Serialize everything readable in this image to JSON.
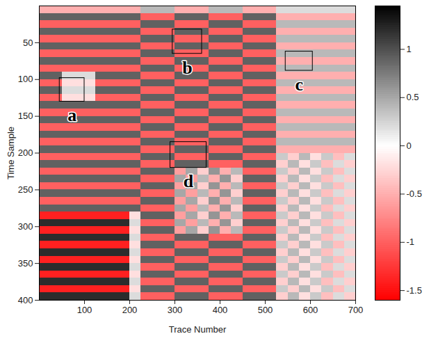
{
  "chart_data": {
    "type": "heatmap",
    "x_label": "Trace Number",
    "y_label": "Time Sample",
    "xlim": [
      0,
      700
    ],
    "xticks": [
      100,
      200,
      300,
      400,
      500,
      600,
      700
    ],
    "ylim": [
      0,
      400
    ],
    "yticks": [
      50,
      100,
      150,
      200,
      250,
      300,
      350,
      400
    ],
    "cells": {
      "x": [
        12.5,
        37.5,
        62.5,
        87.5,
        112.5,
        137.5,
        162.5,
        187.5,
        212.5,
        237.5,
        262.5,
        287.5,
        312.5,
        337.5,
        362.5,
        387.5,
        412.5,
        437.5,
        462.5,
        487.5,
        512.5,
        537.5,
        562.5,
        587.5,
        612.5,
        637.5,
        662.5,
        687.5
      ],
      "y": [
        5,
        15,
        25,
        35,
        45,
        55,
        65,
        75,
        85,
        95,
        105,
        115,
        125,
        135,
        145,
        155,
        165,
        175,
        185,
        195,
        205,
        215,
        225,
        235,
        245,
        255,
        265,
        275,
        285,
        295,
        305,
        315,
        325,
        335,
        345,
        355,
        365,
        375,
        385,
        395
      ],
      "values": [
        [
          -0.5,
          -0.5,
          -0.5,
          -0.5,
          -0.5,
          -0.5,
          -0.5,
          -0.5,
          -0.5,
          0.4,
          0.4,
          0.4,
          -0.5,
          -0.5,
          -0.5,
          0.4,
          0.4,
          0.4,
          -0.5,
          -0.5,
          -0.5,
          0.2,
          0.2,
          0.2,
          0.2,
          0.2,
          0.2,
          0.2
        ],
        [
          0.9,
          0.9,
          0.9,
          0.9,
          0.9,
          0.9,
          0.9,
          0.9,
          0.9,
          -1,
          -1,
          -1,
          0.9,
          0.9,
          0.9,
          -1,
          -1,
          -1,
          0.9,
          0.9,
          0.9,
          -0.5,
          -0.5,
          -0.5,
          -0.5,
          -0.5,
          -0.5,
          -0.5
        ],
        [
          -1,
          -1,
          -1,
          -1,
          -1,
          -1,
          -1,
          -1,
          -1,
          0.9,
          0.9,
          0.9,
          -1,
          -1,
          -1,
          0.9,
          0.9,
          0.9,
          -1,
          -1,
          -1,
          0.4,
          0.4,
          0.4,
          0.4,
          0.4,
          0.4,
          0.4
        ],
        [
          0.9,
          0.9,
          0.9,
          0.9,
          0.9,
          0.9,
          0.9,
          0.9,
          0.9,
          -1,
          -1,
          -1,
          0.9,
          0.9,
          0.9,
          -1,
          -1,
          -1,
          0.9,
          0.9,
          0.9,
          -0.5,
          -0.5,
          -0.5,
          -0.5,
          -0.5,
          -0.5,
          -0.5
        ],
        [
          -1,
          -1,
          -1,
          -1,
          -1,
          -1,
          -1,
          -1,
          -1,
          0.9,
          0.9,
          0.9,
          -1,
          -1,
          -1,
          0.9,
          0.9,
          0.9,
          -1,
          -1,
          -1,
          0.4,
          0.4,
          0.4,
          0.4,
          0.4,
          0.4,
          0.4
        ],
        [
          0.9,
          0.9,
          0.9,
          0.9,
          0.9,
          0.9,
          0.9,
          0.9,
          0.9,
          -1,
          -1,
          -1,
          0.9,
          0.9,
          0.9,
          -1,
          -1,
          -1,
          0.9,
          0.9,
          0.9,
          -0.5,
          -0.5,
          -0.5,
          -0.5,
          -0.5,
          -0.5,
          -0.5
        ],
        [
          -1,
          -1,
          -1,
          -1,
          -1,
          -1,
          -1,
          -1,
          -1,
          0.9,
          0.9,
          0.9,
          -1,
          -1,
          -1,
          0.9,
          0.9,
          0.9,
          -1,
          -1,
          -1,
          0.4,
          0.4,
          0.4,
          0.4,
          0.4,
          0.4,
          0.4
        ],
        [
          0.9,
          0.9,
          0.9,
          0.9,
          0.9,
          0.9,
          0.9,
          0.9,
          0.9,
          -1,
          -1,
          -1,
          0.9,
          0.9,
          0.9,
          -1,
          -1,
          -1,
          0.9,
          0.9,
          0.9,
          -0.5,
          -0.5,
          -0.5,
          -0.5,
          -0.5,
          -0.5,
          -0.5
        ],
        [
          -1,
          -1,
          -1,
          -1,
          -1,
          -1,
          -1,
          -1,
          -1,
          0.9,
          0.9,
          0.9,
          -1,
          -1,
          -1,
          0.9,
          0.9,
          0.9,
          -1,
          -1,
          -1,
          0.4,
          0.4,
          0.4,
          0.4,
          0.4,
          0.4,
          0.4
        ],
        [
          0.9,
          0.9,
          0.2,
          0.2,
          0.2,
          0.9,
          0.9,
          0.9,
          0.9,
          -1,
          -1,
          -1,
          0.9,
          0.9,
          0.9,
          -1,
          -1,
          -1,
          0.9,
          0.9,
          0.9,
          -0.5,
          -0.5,
          -0.5,
          -0.5,
          -0.5,
          -0.5,
          -0.5
        ],
        [
          -1,
          -1,
          -0.2,
          -0.2,
          -0.2,
          -1,
          -1,
          -1,
          -1,
          0.9,
          0.9,
          0.9,
          -1,
          -1,
          -1,
          0.9,
          0.9,
          0.9,
          -1,
          -1,
          -1,
          0.4,
          0.4,
          0.4,
          0.4,
          0.4,
          0.4,
          0.4
        ],
        [
          0.9,
          0.9,
          0.2,
          0.2,
          0.2,
          0.9,
          0.9,
          0.9,
          0.9,
          -1,
          -1,
          -1,
          0.9,
          0.9,
          0.9,
          -1,
          -1,
          -1,
          0.9,
          0.9,
          0.9,
          -0.5,
          -0.5,
          -0.5,
          -0.5,
          -0.5,
          -0.5,
          -0.5
        ],
        [
          -1,
          -1,
          -0.2,
          -0.2,
          -0.2,
          -1,
          -1,
          -1,
          -1,
          0.9,
          0.9,
          0.9,
          -1,
          -1,
          -1,
          0.9,
          0.9,
          0.9,
          -1,
          -1,
          -1,
          0.4,
          0.4,
          0.4,
          0.4,
          0.4,
          0.4,
          0.4
        ],
        [
          0.9,
          0.9,
          0.9,
          0.9,
          0.9,
          0.9,
          0.9,
          0.9,
          0.9,
          -1,
          -1,
          -1,
          0.9,
          0.9,
          0.9,
          -1,
          -1,
          -1,
          0.9,
          0.9,
          0.9,
          -0.5,
          -0.5,
          -0.5,
          -0.5,
          -0.5,
          -0.5,
          -0.5
        ],
        [
          -1,
          -1,
          -1,
          -1,
          -1,
          -1,
          -1,
          -1,
          -1,
          0.9,
          0.9,
          0.9,
          -1,
          -1,
          -1,
          0.9,
          0.9,
          0.9,
          -1,
          -1,
          -1,
          0.4,
          0.4,
          0.4,
          0.4,
          0.4,
          0.4,
          0.4
        ],
        [
          0.9,
          0.9,
          0.9,
          0.9,
          0.9,
          0.9,
          0.9,
          0.9,
          0.9,
          -1,
          -1,
          -1,
          0.9,
          0.9,
          0.9,
          -1,
          -1,
          -1,
          0.9,
          0.9,
          0.9,
          -0.5,
          -0.5,
          -0.5,
          -0.5,
          -0.5,
          -0.5,
          -0.5
        ],
        [
          -1,
          -1,
          -1,
          -1,
          -1,
          -1,
          -1,
          -1,
          -1,
          0.9,
          0.9,
          0.9,
          -1,
          -1,
          -1,
          0.9,
          0.9,
          0.9,
          -1,
          -1,
          -1,
          0.4,
          0.4,
          0.4,
          0.4,
          0.4,
          0.4,
          0.4
        ],
        [
          0.9,
          0.9,
          0.9,
          0.9,
          0.9,
          0.9,
          0.9,
          0.9,
          0.9,
          -1,
          -1,
          -1,
          0.9,
          0.9,
          0.9,
          -1,
          -1,
          -1,
          0.9,
          0.9,
          0.9,
          -0.5,
          -0.5,
          -0.5,
          -0.5,
          -0.5,
          -0.5,
          -0.5
        ],
        [
          -1,
          -1,
          -1,
          -1,
          -1,
          -1,
          -1,
          -1,
          -1,
          0.9,
          0.9,
          0.9,
          -1,
          -1,
          -1,
          0.9,
          0.9,
          0.9,
          -1,
          -1,
          -1,
          0.4,
          0.4,
          0.4,
          0.4,
          0.4,
          0.4,
          0.4
        ],
        [
          0.9,
          0.9,
          0.9,
          0.9,
          0.9,
          0.9,
          0.9,
          0.9,
          0.9,
          -1,
          -1,
          -1,
          0.9,
          0.9,
          0.9,
          -1,
          -1,
          -1,
          0.9,
          0.9,
          0.9,
          -0.5,
          -0.5,
          -0.5,
          -0.5,
          -0.5,
          -0.5,
          -0.5
        ],
        [
          -1,
          -1,
          -1,
          -1,
          -1,
          -1,
          -1,
          -1,
          -1,
          0.9,
          0.9,
          0.9,
          -1,
          -1,
          -1,
          0.9,
          0.9,
          0.9,
          -1,
          -1,
          -1,
          0.3,
          -0.3,
          0.4,
          -0.2,
          0.3,
          -0.4,
          0.2
        ],
        [
          0.9,
          0.9,
          0.9,
          0.9,
          0.9,
          0.9,
          0.9,
          0.9,
          0.9,
          -1,
          -1,
          -1,
          0.9,
          0.9,
          0.9,
          -1,
          -1,
          -1,
          0.9,
          0.9,
          0.9,
          -0.3,
          0.4,
          -0.2,
          0.3,
          -0.4,
          0.2,
          -0.3
        ],
        [
          -1,
          -1,
          -1,
          -1,
          -1,
          -1,
          -1,
          -1,
          -1,
          0.9,
          0.9,
          0.9,
          -0.6,
          0.5,
          -0.3,
          0.6,
          -0.5,
          0.4,
          -1,
          -1,
          -1,
          0.3,
          -0.3,
          0.4,
          -0.2,
          0.3,
          -0.4,
          0.2
        ],
        [
          0.9,
          0.9,
          0.9,
          0.9,
          0.9,
          0.9,
          0.9,
          0.9,
          0.9,
          -1,
          -1,
          -1,
          0.5,
          -0.6,
          0.4,
          -0.5,
          0.6,
          -0.3,
          0.9,
          0.9,
          0.9,
          -0.3,
          0.4,
          -0.2,
          0.3,
          -0.4,
          0.2,
          -0.3
        ],
        [
          -1,
          -1,
          -1,
          -1,
          -1,
          -1,
          -1,
          -1,
          -1,
          0.9,
          0.9,
          0.9,
          -0.6,
          0.5,
          -0.3,
          0.6,
          -0.5,
          0.4,
          -1,
          -1,
          -1,
          0.3,
          -0.3,
          0.4,
          -0.2,
          0.3,
          -0.4,
          0.2
        ],
        [
          0.9,
          0.9,
          0.9,
          0.9,
          0.9,
          0.9,
          0.9,
          0.9,
          0.9,
          -1,
          -1,
          -1,
          0.5,
          -0.6,
          0.4,
          -0.5,
          0.6,
          -0.3,
          0.9,
          0.9,
          0.9,
          -0.3,
          0.4,
          -0.2,
          0.3,
          -0.4,
          0.2,
          -0.3
        ],
        [
          -1,
          -1,
          -1,
          -1,
          -1,
          -1,
          -1,
          -1,
          -1,
          0.9,
          0.9,
          0.9,
          -0.6,
          0.5,
          -0.3,
          0.6,
          -0.5,
          0.4,
          -1,
          -1,
          -1,
          0.3,
          -0.3,
          0.4,
          -0.2,
          0.3,
          -0.4,
          0.2
        ],
        [
          0.9,
          0.9,
          0.9,
          0.9,
          0.9,
          0.9,
          0.9,
          0.9,
          0.9,
          -1,
          -1,
          -1,
          0.5,
          -0.6,
          0.4,
          -0.5,
          0.6,
          -0.3,
          0.9,
          0.9,
          0.9,
          -0.3,
          0.4,
          -0.2,
          0.3,
          -0.4,
          0.2,
          -0.3
        ],
        [
          -1.4,
          -1.4,
          -1.4,
          -1.4,
          -1.4,
          -1.4,
          -1.4,
          -1.4,
          -0.2,
          0.9,
          0.9,
          0.9,
          -0.6,
          0.5,
          -0.3,
          0.6,
          -0.5,
          0.4,
          -1,
          -1,
          -1,
          0.3,
          -0.3,
          0.4,
          -0.2,
          0.3,
          -0.4,
          0.2
        ],
        [
          1.2,
          1.2,
          1.2,
          1.2,
          1.2,
          1.2,
          1.2,
          1.2,
          0.2,
          -1,
          -1,
          -1,
          0.5,
          -0.6,
          0.4,
          -0.5,
          0.6,
          -0.3,
          0.9,
          0.9,
          0.9,
          -0.3,
          0.4,
          -0.2,
          0.3,
          -0.4,
          0.2,
          -0.3
        ],
        [
          -1.4,
          -1.4,
          -1.4,
          -1.4,
          -1.4,
          -1.4,
          -1.4,
          -1.4,
          -0.2,
          0.9,
          0.9,
          0.9,
          -0.6,
          0.5,
          -0.3,
          0.6,
          -0.5,
          0.4,
          -1,
          -1,
          -1,
          0.3,
          -0.3,
          0.4,
          -0.2,
          0.3,
          -0.4,
          0.2
        ],
        [
          1.2,
          1.2,
          1.2,
          1.2,
          1.2,
          1.2,
          1.2,
          1.2,
          0.2,
          -1,
          -1,
          -1,
          0.9,
          0.9,
          0.9,
          -1,
          -1,
          -1,
          0.9,
          0.9,
          0.9,
          -0.3,
          0.4,
          -0.2,
          0.3,
          -0.4,
          0.2,
          -0.3
        ],
        [
          -1.4,
          -1.4,
          -1.4,
          -1.4,
          -1.4,
          -1.4,
          -1.4,
          -1.4,
          -0.2,
          0.9,
          0.9,
          0.9,
          -1,
          -1,
          -1,
          0.9,
          0.9,
          0.9,
          -1,
          -1,
          -1,
          0.3,
          -0.3,
          0.4,
          -0.2,
          0.3,
          -0.4,
          0.2
        ],
        [
          1.2,
          1.2,
          1.2,
          1.2,
          1.2,
          1.2,
          1.2,
          1.2,
          0.2,
          -1,
          -1,
          -1,
          0.9,
          0.9,
          0.9,
          -1,
          -1,
          -1,
          0.9,
          0.9,
          0.9,
          -0.3,
          0.4,
          -0.2,
          0.3,
          -0.4,
          0.2,
          -0.3
        ],
        [
          -1.4,
          -1.4,
          -1.4,
          -1.4,
          -1.4,
          -1.4,
          -1.4,
          -1.4,
          -0.2,
          0.9,
          0.9,
          0.9,
          -1,
          -1,
          -1,
          0.9,
          0.9,
          0.9,
          -1,
          -1,
          -1,
          0.3,
          -0.3,
          0.4,
          -0.2,
          0.3,
          -0.4,
          0.2
        ],
        [
          1.2,
          1.2,
          1.2,
          1.2,
          1.2,
          1.2,
          1.2,
          1.2,
          0.2,
          -1,
          -1,
          -1,
          0.9,
          0.9,
          0.9,
          -1,
          -1,
          -1,
          0.9,
          0.9,
          0.9,
          -0.3,
          0.4,
          -0.2,
          0.3,
          -0.4,
          0.2,
          -0.3
        ],
        [
          -1.4,
          -1.4,
          -1.4,
          -1.4,
          -1.4,
          -1.4,
          -1.4,
          -1.4,
          -0.2,
          0.9,
          0.9,
          0.9,
          -1,
          -1,
          -1,
          0.9,
          0.9,
          0.9,
          -1,
          -1,
          -1,
          0.3,
          -0.3,
          0.4,
          -0.2,
          0.3,
          -0.4,
          0.2
        ],
        [
          1.2,
          1.2,
          1.2,
          1.2,
          1.2,
          1.2,
          1.2,
          1.2,
          0.2,
          -1,
          -1,
          -1,
          0.9,
          0.9,
          0.9,
          -1,
          -1,
          -1,
          0.9,
          0.9,
          0.9,
          -0.3,
          0.4,
          -0.2,
          0.3,
          -0.4,
          0.2,
          -0.3
        ],
        [
          -1.4,
          -1.4,
          -1.4,
          -1.4,
          -1.4,
          -1.4,
          -1.4,
          -1.4,
          -0.2,
          0.9,
          0.9,
          0.9,
          -1,
          -1,
          -1,
          0.9,
          0.9,
          0.9,
          -1,
          -1,
          -1,
          0.3,
          -0.3,
          0.4,
          -0.2,
          0.3,
          -0.4,
          0.2
        ],
        [
          1.2,
          1.2,
          1.2,
          1.2,
          1.2,
          1.2,
          1.2,
          1.2,
          0.2,
          -1,
          -1,
          -1,
          0.9,
          0.9,
          0.9,
          -1,
          -1,
          -1,
          0.9,
          0.9,
          0.9,
          -0.3,
          0.4,
          -0.2,
          0.3,
          -0.4,
          0.2,
          -0.3
        ]
      ]
    },
    "colorbar": {
      "range": [
        -1.6,
        1.45
      ],
      "ticks": [
        -1.5,
        -1,
        -0.5,
        0,
        0.5,
        1
      ]
    },
    "annotations": [
      {
        "label": "a",
        "x": [
          45,
          100
        ],
        "y": [
          98,
          130
        ]
      },
      {
        "label": "b",
        "x": [
          295,
          360
        ],
        "y": [
          32,
          65
        ]
      },
      {
        "label": "c",
        "x": [
          545,
          605
        ],
        "y": [
          62,
          88
        ]
      },
      {
        "label": "d",
        "x": [
          290,
          370
        ],
        "y": [
          185,
          220
        ]
      }
    ]
  }
}
